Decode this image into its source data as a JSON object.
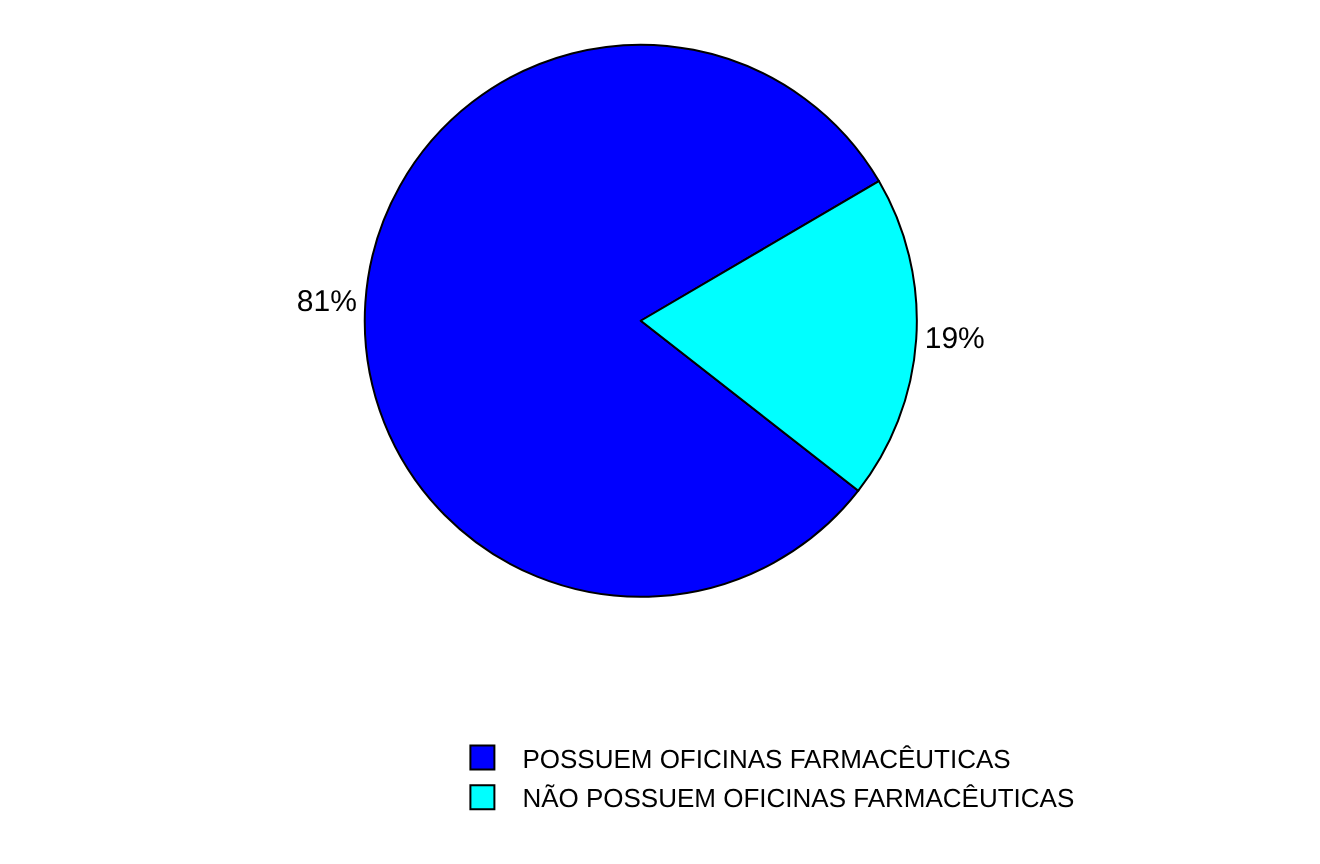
{
  "chart_data": {
    "type": "pie",
    "categories": [
      "POSSUEM OFICINAS FARMACÊUTICAS",
      "NÃO POSSUEM OFICINAS FARMACÊUTICAS"
    ],
    "values": [
      81,
      19
    ],
    "colors": [
      "#0000ff",
      "#00ffff"
    ],
    "value_labels": [
      "81%",
      "19%"
    ],
    "legend": "bottom"
  }
}
